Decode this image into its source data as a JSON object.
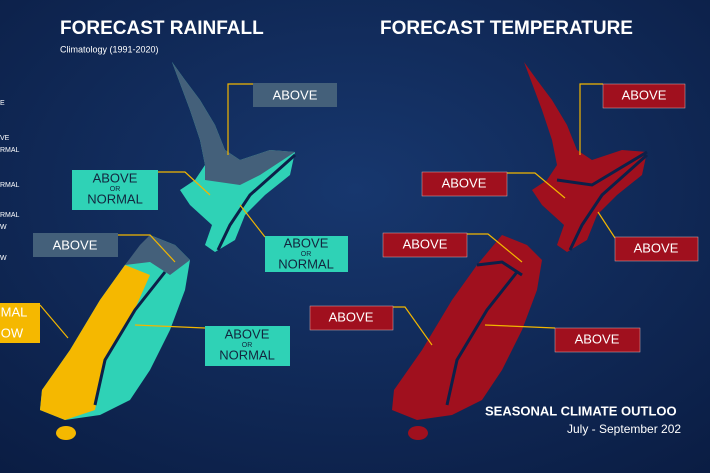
{
  "rainfall": {
    "title": "FORECAST RAINFALL",
    "subtitle": "Climatology (1991-2020)",
    "legend_fragments": [
      "E",
      "VE",
      "RMAL",
      "RMAL",
      "RMAL",
      "W",
      "W"
    ],
    "labels": [
      {
        "lines": [
          "ABOVE"
        ]
      },
      {
        "lines": [
          "ABOVE",
          "OR",
          "NORMAL"
        ]
      },
      {
        "lines": [
          "ABOVE"
        ]
      },
      {
        "lines": [
          "ABOVE",
          "OR",
          "NORMAL"
        ]
      },
      {
        "lines": [
          "MAL",
          "OW"
        ]
      },
      {
        "lines": [
          "ABOVE",
          "OR",
          "NORMAL"
        ]
      }
    ]
  },
  "temperature": {
    "title": "FORECAST TEMPERATURE",
    "labels": [
      "ABOVE",
      "ABOVE",
      "ABOVE",
      "ABOVE",
      "ABOVE",
      "ABOVE"
    ]
  },
  "footer": {
    "title": "SEASONAL CLIMATE OUTLOO",
    "subtitle": "July - September 202"
  }
}
